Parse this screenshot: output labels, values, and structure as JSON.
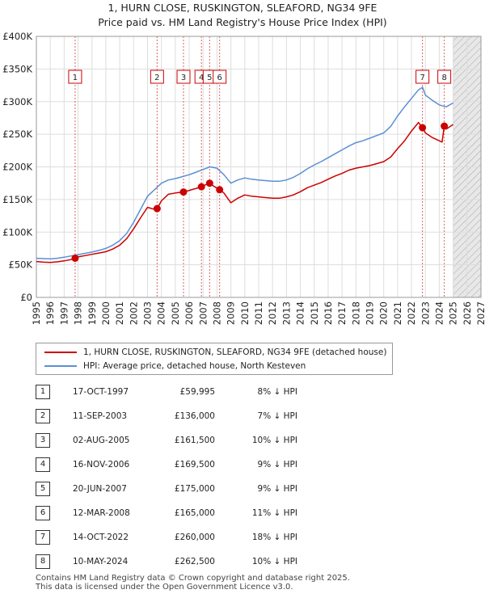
{
  "header": {
    "title": "1, HURN CLOSE, RUSKINGTON, SLEAFORD, NG34 9FE",
    "subtitle": "Price paid vs. HM Land Registry's House Price Index (HPI)"
  },
  "colors": {
    "property": "#cc0000",
    "hpi": "#5b8fd4",
    "marker_border": "#cc0000"
  },
  "chart_data": {
    "type": "line",
    "xlim": [
      1995,
      2027
    ],
    "ylim": [
      0,
      400000
    ],
    "x_ticks": [
      "1995",
      "1996",
      "1997",
      "1998",
      "1999",
      "2000",
      "2001",
      "2002",
      "2003",
      "2004",
      "2005",
      "2006",
      "2007",
      "2008",
      "2009",
      "2010",
      "2011",
      "2012",
      "2013",
      "2014",
      "2015",
      "2016",
      "2017",
      "2018",
      "2019",
      "2020",
      "2021",
      "2022",
      "2023",
      "2024",
      "2025",
      "2026",
      "2027"
    ],
    "y_ticks": [
      {
        "value": 0,
        "label": "£0"
      },
      {
        "value": 50000,
        "label": "£50K"
      },
      {
        "value": 100000,
        "label": "£100K"
      },
      {
        "value": 150000,
        "label": "£150K"
      },
      {
        "value": 200000,
        "label": "£200K"
      },
      {
        "value": 250000,
        "label": "£250K"
      },
      {
        "value": 300000,
        "label": "£300K"
      },
      {
        "value": 350000,
        "label": "£350K"
      },
      {
        "value": 400000,
        "label": "£400K"
      }
    ],
    "grid": true,
    "forecast_from": 2025.0,
    "series": [
      {
        "name": "1, HURN CLOSE, RUSKINGTON, SLEAFORD, NG34 9FE (detached house)",
        "x": [
          1995.0,
          1995.5,
          1996.0,
          1996.5,
          1997.0,
          1997.5,
          1997.79,
          1998.0,
          1998.5,
          1999.0,
          1999.5,
          2000.0,
          2000.5,
          2001.0,
          2001.5,
          2002.0,
          2002.5,
          2003.0,
          2003.5,
          2003.69,
          2004.0,
          2004.5,
          2005.0,
          2005.59,
          2006.0,
          2006.5,
          2006.88,
          2007.0,
          2007.47,
          2007.8,
          2008.19,
          2008.5,
          2009.0,
          2009.5,
          2010.0,
          2010.5,
          2011.0,
          2011.5,
          2012.0,
          2012.5,
          2013.0,
          2013.5,
          2014.0,
          2014.5,
          2015.0,
          2015.5,
          2016.0,
          2016.5,
          2017.0,
          2017.5,
          2018.0,
          2018.5,
          2019.0,
          2019.5,
          2020.0,
          2020.5,
          2021.0,
          2021.5,
          2022.0,
          2022.5,
          2022.79,
          2023.0,
          2023.5,
          2024.0,
          2024.2,
          2024.36,
          2024.5,
          2025.0
        ],
        "values": [
          55000,
          54000,
          53500,
          54500,
          56000,
          58000,
          59995,
          62000,
          64000,
          66000,
          68000,
          70000,
          74000,
          80000,
          90000,
          105000,
          122000,
          138000,
          135000,
          136000,
          148000,
          158000,
          160000,
          161500,
          164000,
          167000,
          169500,
          171000,
          175000,
          170000,
          165000,
          160000,
          145000,
          152000,
          157000,
          155000,
          154000,
          153000,
          152000,
          152000,
          154000,
          157000,
          162000,
          168000,
          172000,
          176000,
          181000,
          186000,
          190000,
          195000,
          198000,
          200000,
          202000,
          205000,
          208000,
          215000,
          228000,
          240000,
          255000,
          268000,
          260000,
          252000,
          245000,
          240000,
          238000,
          262500,
          258000,
          265000
        ]
      },
      {
        "name": "HPI: Average price, detached house, North Kesteven",
        "x": [
          1995.0,
          1995.5,
          1996.0,
          1996.5,
          1997.0,
          1997.5,
          1998.0,
          1998.5,
          1999.0,
          1999.5,
          2000.0,
          2000.5,
          2001.0,
          2001.5,
          2002.0,
          2002.5,
          2003.0,
          2003.5,
          2004.0,
          2004.5,
          2005.0,
          2005.5,
          2006.0,
          2006.5,
          2007.0,
          2007.5,
          2008.0,
          2008.5,
          2009.0,
          2009.5,
          2010.0,
          2010.5,
          2011.0,
          2011.5,
          2012.0,
          2012.5,
          2013.0,
          2013.5,
          2014.0,
          2014.5,
          2015.0,
          2015.5,
          2016.0,
          2016.5,
          2017.0,
          2017.5,
          2018.0,
          2018.5,
          2019.0,
          2019.5,
          2020.0,
          2020.5,
          2021.0,
          2021.5,
          2022.0,
          2022.5,
          2022.8,
          2023.0,
          2023.5,
          2024.0,
          2024.5,
          2025.0
        ],
        "values": [
          60000,
          59500,
          59000,
          60000,
          61500,
          63500,
          65500,
          67500,
          69500,
          72000,
          75000,
          80000,
          87000,
          98000,
          115000,
          135000,
          155000,
          165000,
          175000,
          180000,
          182000,
          185000,
          188000,
          192000,
          196000,
          200000,
          198000,
          188000,
          175000,
          180000,
          183000,
          181000,
          180000,
          179000,
          178000,
          178000,
          180000,
          184000,
          190000,
          197000,
          203000,
          208000,
          214000,
          220000,
          226000,
          232000,
          237000,
          240000,
          244000,
          248000,
          252000,
          262000,
          278000,
          292000,
          305000,
          318000,
          322000,
          310000,
          302000,
          295000,
          292000,
          298000
        ]
      }
    ],
    "sales": [
      {
        "num": "1",
        "x": 1997.79,
        "value": 59995
      },
      {
        "num": "2",
        "x": 2003.69,
        "value": 136000
      },
      {
        "num": "3",
        "x": 2005.59,
        "value": 161500
      },
      {
        "num": "4",
        "x": 2006.88,
        "value": 169500
      },
      {
        "num": "5",
        "x": 2007.47,
        "value": 175000
      },
      {
        "num": "6",
        "x": 2008.19,
        "value": 165000
      },
      {
        "num": "7",
        "x": 2022.79,
        "value": 260000
      },
      {
        "num": "8",
        "x": 2024.36,
        "value": 262500
      }
    ]
  },
  "transactions": [
    {
      "num": "1",
      "date": "17-OCT-1997",
      "price": "£59,995",
      "hpi": "8% ↓ HPI"
    },
    {
      "num": "2",
      "date": "11-SEP-2003",
      "price": "£136,000",
      "hpi": "7% ↓ HPI"
    },
    {
      "num": "3",
      "date": "02-AUG-2005",
      "price": "£161,500",
      "hpi": "10% ↓ HPI"
    },
    {
      "num": "4",
      "date": "16-NOV-2006",
      "price": "£169,500",
      "hpi": "9% ↓ HPI"
    },
    {
      "num": "5",
      "date": "20-JUN-2007",
      "price": "£175,000",
      "hpi": "9% ↓ HPI"
    },
    {
      "num": "6",
      "date": "12-MAR-2008",
      "price": "£165,000",
      "hpi": "11% ↓ HPI"
    },
    {
      "num": "7",
      "date": "14-OCT-2022",
      "price": "£260,000",
      "hpi": "18% ↓ HPI"
    },
    {
      "num": "8",
      "date": "10-MAY-2024",
      "price": "£262,500",
      "hpi": "10% ↓ HPI"
    }
  ],
  "footer": {
    "line1": "Contains HM Land Registry data © Crown copyright and database right 2025.",
    "line2": "This data is licensed under the Open Government Licence v3.0."
  }
}
